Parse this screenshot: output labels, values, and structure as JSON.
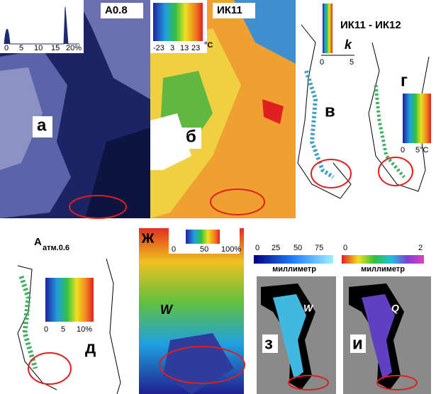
{
  "panels": {
    "a": {
      "title": "A0.8",
      "label": "а",
      "ticks": [
        "0",
        "5",
        "10",
        "15",
        "20%"
      ]
    },
    "b": {
      "title": "ИК11",
      "label": "б",
      "ticks": [
        "-23",
        "3",
        "13",
        "23",
        "°C"
      ]
    },
    "v": {
      "title": "ИК11 - ИК12",
      "label": "в",
      "unit": "k",
      "ticks": [
        "0",
        "5"
      ]
    },
    "g": {
      "label": "г",
      "ticks": [
        "0",
        "5°C"
      ]
    },
    "d": {
      "title": "A",
      "title_sub": "атм.0.6",
      "label": "д",
      "ticks": [
        "0",
        "5",
        "10%"
      ]
    },
    "zh": {
      "label": "ж",
      "inner": "W",
      "ticks": [
        "0",
        "50",
        "100%"
      ]
    },
    "z": {
      "label": "з",
      "inner": "W",
      "ticks": [
        "0",
        "25",
        "50",
        "75"
      ],
      "unit": "миллиметр"
    },
    "i": {
      "label": "и",
      "inner": "Q",
      "ticks": [
        "0",
        "2"
      ],
      "unit": "миллиметр"
    }
  }
}
